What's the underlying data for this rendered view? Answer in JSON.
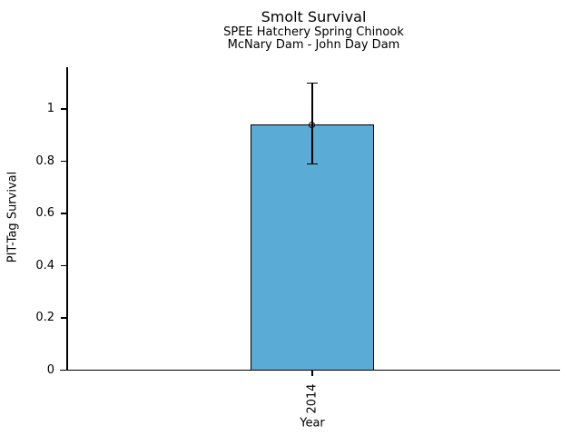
{
  "chart_data": {
    "type": "bar",
    "title": "Smolt Survival",
    "subtitle1": "SPEE Hatchery Spring Chinook",
    "subtitle2": "McNary Dam - John Day Dam",
    "xlabel": "Year",
    "ylabel": "PIT-Tag Survival",
    "categories": [
      "2014"
    ],
    "values": [
      0.94
    ],
    "error_low": [
      0.79
    ],
    "error_high": [
      1.1
    ],
    "yticks": [
      0,
      0.2,
      0.4,
      0.6,
      0.8,
      1
    ],
    "ytick_labels": [
      "0",
      "0.2",
      "0.4",
      "0.6",
      "0.8",
      "1"
    ],
    "ylim": [
      0,
      1.16
    ],
    "bar_color": "#5aacd7",
    "edge_color": "#000000",
    "marker": "open-circle",
    "grid": false,
    "legend": null
  }
}
